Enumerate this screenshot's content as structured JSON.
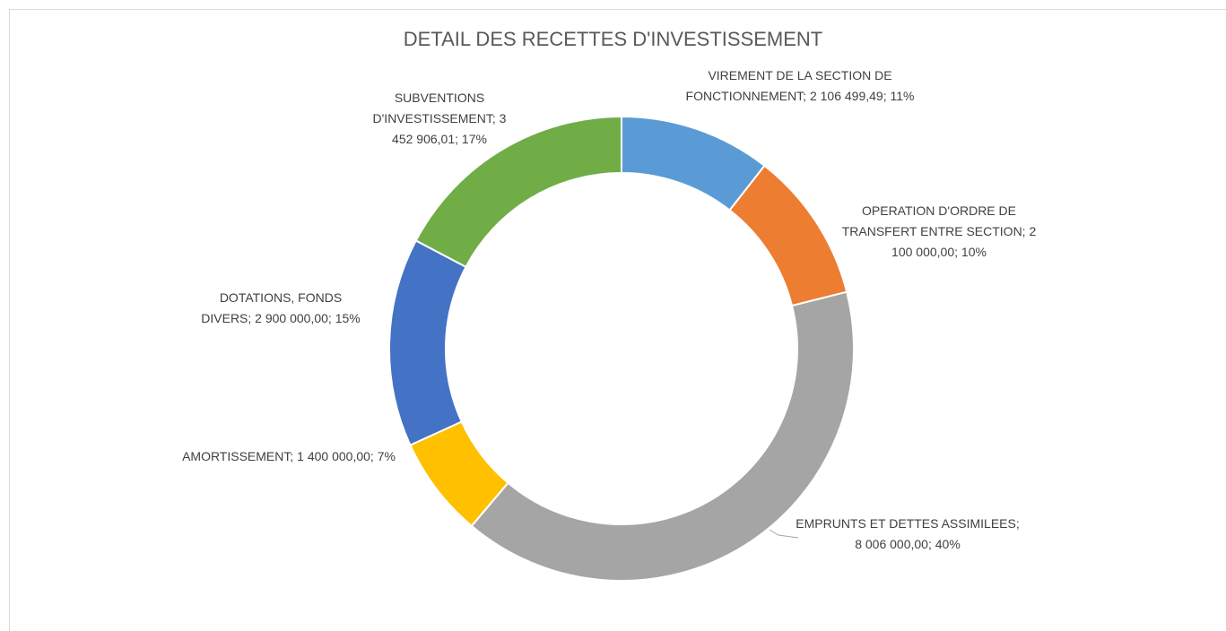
{
  "chart_data": {
    "type": "donut",
    "title": "DETAIL DES RECETTES D'INVESTISSEMENT",
    "categories": [
      "VIREMENT DE LA SECTION DE FONCTIONNEMENT;",
      "OPERATION D'ORDRE DE TRANSFERT ENTRE SECTION;",
      "EMPRUNTS ET DETTES ASSIMILEES;",
      "AMORTISSEMENT;",
      "DOTATIONS, FONDS DIVERS;",
      "SUBVENTIONS D'INVESTISSEMENT;"
    ],
    "values": [
      2106499.49,
      2100000,
      8006000,
      1400000,
      2900000,
      3452906.01
    ],
    "value_labels": [
      "2 106 499,49;",
      "2 100 000,00;",
      "8 006 000,00;",
      "1 400 000,00;",
      "2 900 000,00;",
      "3 452 906,01;"
    ],
    "percents": [
      11,
      10,
      40,
      7,
      15,
      17
    ],
    "percent_labels": [
      "11%",
      "10%",
      "40%",
      "7%",
      "15%",
      "17%"
    ],
    "colors": [
      "#5b9bd5",
      "#ed7d31",
      "#a5a5a5",
      "#ffc000",
      "#4472c4",
      "#70ad47"
    ]
  }
}
